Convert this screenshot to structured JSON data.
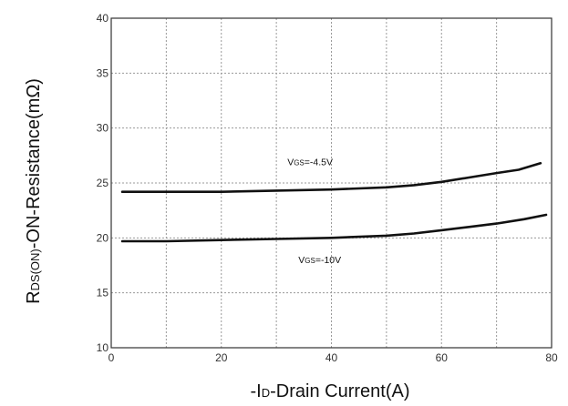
{
  "chart_data": {
    "type": "line",
    "title": "",
    "xlabel": {
      "prefix": "-I",
      "sub": "D",
      "suffix": "-Drain Current(A)"
    },
    "ylabel": {
      "prefix": "R",
      "sub": "DS(ON)",
      "suffix": "-ON-Resistance(mΩ)"
    },
    "xlim": [
      0,
      80
    ],
    "ylim": [
      10,
      40
    ],
    "x_ticks": [
      0,
      20,
      40,
      60,
      80
    ],
    "y_ticks": [
      10,
      15,
      20,
      25,
      30,
      35,
      40
    ],
    "grid": true,
    "grid_step": {
      "x": 10,
      "y": 5
    },
    "series": [
      {
        "label": {
          "prefix": "V",
          "sub": "GS",
          "suffix": "=-4.5V"
        },
        "label_at": [
          32,
          26.6
        ],
        "x": [
          2,
          10,
          20,
          30,
          40,
          50,
          55,
          60,
          65,
          70,
          74,
          78
        ],
        "y": [
          24.2,
          24.2,
          24.2,
          24.3,
          24.4,
          24.6,
          24.8,
          25.1,
          25.5,
          25.9,
          26.2,
          26.8
        ]
      },
      {
        "label": {
          "prefix": "V",
          "sub": "GS",
          "suffix": "=-10V"
        },
        "label_at": [
          34,
          17.7
        ],
        "x": [
          2,
          10,
          20,
          30,
          40,
          50,
          55,
          60,
          65,
          70,
          75,
          79
        ],
        "y": [
          19.7,
          19.7,
          19.8,
          19.9,
          20.0,
          20.2,
          20.4,
          20.7,
          21.0,
          21.3,
          21.7,
          22.1
        ]
      }
    ],
    "colors": {
      "line": "#111111",
      "grid": "#9a9a9a",
      "axis": "#333333"
    }
  }
}
